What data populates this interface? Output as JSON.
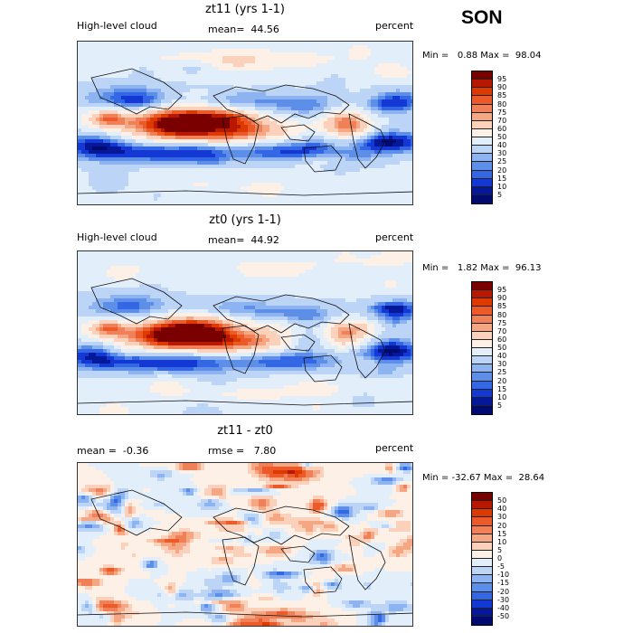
{
  "season": "SON",
  "panels": [
    {
      "title": "zt11 (yrs 1-1)",
      "left_label": "High-level cloud",
      "center_label": "mean=  44.56",
      "right_label": "percent",
      "stats": "Min =   0.88 Max =  98.04",
      "colorbar": {
        "labels": [
          "95",
          "90",
          "85",
          "80",
          "75",
          "70",
          "60",
          "50",
          "40",
          "30",
          "25",
          "20",
          "15",
          "10",
          "5"
        ],
        "colors": [
          "#7a0000",
          "#b81800",
          "#dd3a00",
          "#ec5a2a",
          "#f08058",
          "#f5a682",
          "#fbd1bb",
          "#fdf0e6",
          "#e3eefb",
          "#bcd4f6",
          "#8db4f0",
          "#5e8fe8",
          "#3367e4",
          "#1438d4",
          "#05189a",
          "#000a70"
        ]
      },
      "pattern": "top"
    },
    {
      "title": "zt0 (yrs 1-1)",
      "left_label": "High-level cloud",
      "center_label": "mean=  44.92",
      "right_label": "percent",
      "stats": "Min =   1.82 Max =  96.13",
      "colorbar": {
        "labels": [
          "95",
          "90",
          "85",
          "80",
          "75",
          "70",
          "60",
          "50",
          "40",
          "30",
          "25",
          "20",
          "15",
          "10",
          "5"
        ],
        "colors": [
          "#7a0000",
          "#b81800",
          "#dd3a00",
          "#ec5a2a",
          "#f08058",
          "#f5a682",
          "#fbd1bb",
          "#fdf0e6",
          "#e3eefb",
          "#bcd4f6",
          "#8db4f0",
          "#5e8fe8",
          "#3367e4",
          "#1438d4",
          "#05189a",
          "#000a70"
        ]
      },
      "pattern": "mid"
    },
    {
      "title": "zt11 - zt0",
      "left_label": "mean =  -0.36",
      "center_label": "rmse =   7.80",
      "right_label": "percent",
      "stats": "Min = -32.67 Max =  28.64",
      "colorbar": {
        "labels": [
          "50",
          "40",
          "30",
          "20",
          "15",
          "10",
          "5",
          "0",
          "-5",
          "-10",
          "-15",
          "-20",
          "-30",
          "-40",
          "-50"
        ],
        "colors": [
          "#7a0000",
          "#b81800",
          "#dd3a00",
          "#ec5a2a",
          "#f08058",
          "#f5a682",
          "#fbd1bb",
          "#fdf0e6",
          "#e3eefb",
          "#bcd4f6",
          "#8db4f0",
          "#5e8fe8",
          "#3367e4",
          "#1438d4",
          "#05189a",
          "#000a70"
        ]
      },
      "pattern": "diff"
    }
  ]
}
